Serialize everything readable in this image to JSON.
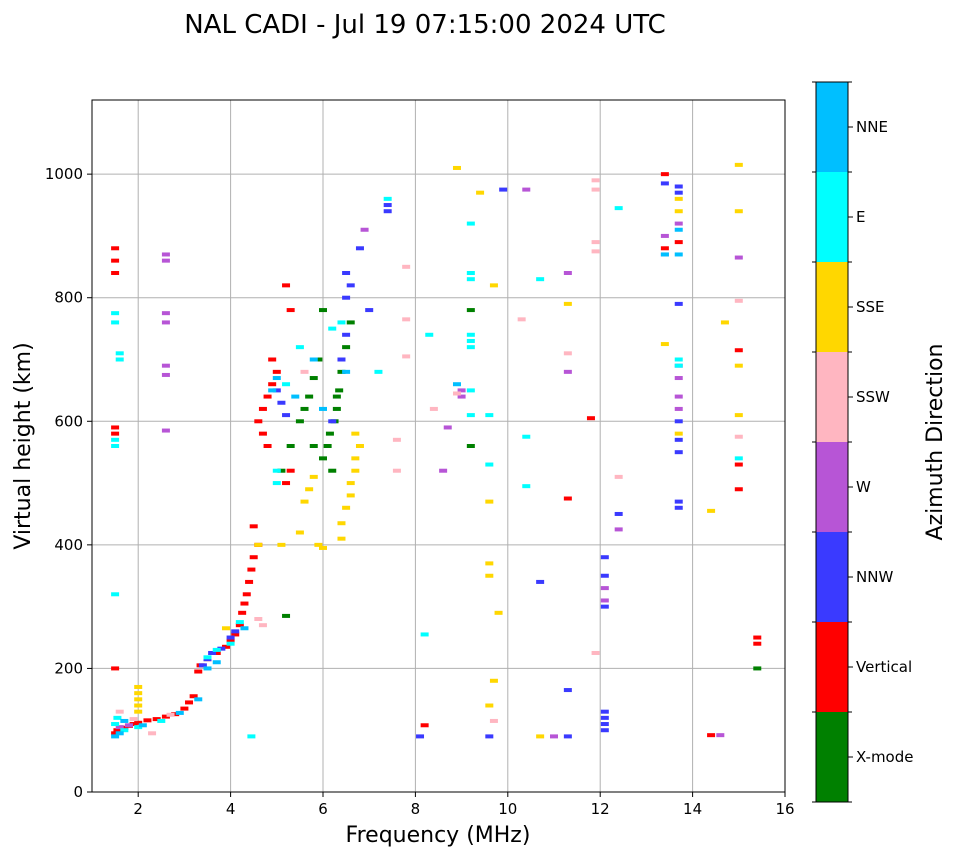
{
  "chart_data": {
    "type": "scatter",
    "title": "NAL CADI - Jul 19 07:15:00 2024 UTC",
    "xlabel": "Frequency (MHz)",
    "ylabel": "Virtual height (km)",
    "xlim": [
      1,
      16
    ],
    "ylim": [
      0,
      1120
    ],
    "xticks": [
      2,
      4,
      6,
      8,
      10,
      12,
      14,
      16
    ],
    "yticks": [
      0,
      200,
      400,
      600,
      800,
      1000
    ],
    "grid": true,
    "colorbar": {
      "label": "Azimuth Direction",
      "categories": [
        {
          "name": "X-mode",
          "color": "#008000"
        },
        {
          "name": "Vertical",
          "color": "#ff0000"
        },
        {
          "name": "NNW",
          "color": "#3a3aff"
        },
        {
          "name": "W",
          "color": "#b755d6"
        },
        {
          "name": "SSW",
          "color": "#ffb6c1"
        },
        {
          "name": "SSE",
          "color": "#ffd700"
        },
        {
          "name": "E",
          "color": "#00ffff"
        },
        {
          "name": "NNE",
          "color": "#00bfff"
        }
      ]
    },
    "series": [
      {
        "name": "Vertical",
        "points": [
          [
            1.5,
            95
          ],
          [
            1.55,
            100
          ],
          [
            1.7,
            104
          ],
          [
            1.8,
            107
          ],
          [
            1.9,
            110
          ],
          [
            2.0,
            112
          ],
          [
            2.2,
            116
          ],
          [
            2.4,
            118
          ],
          [
            2.6,
            122
          ],
          [
            2.8,
            126
          ],
          [
            3.0,
            135
          ],
          [
            3.1,
            145
          ],
          [
            3.2,
            155
          ],
          [
            3.3,
            195
          ],
          [
            3.35,
            205
          ],
          [
            3.5,
            215
          ],
          [
            3.7,
            225
          ],
          [
            3.9,
            235
          ],
          [
            4.0,
            245
          ],
          [
            4.1,
            255
          ],
          [
            4.2,
            270
          ],
          [
            4.25,
            290
          ],
          [
            4.3,
            305
          ],
          [
            4.35,
            320
          ],
          [
            4.4,
            340
          ],
          [
            4.45,
            360
          ],
          [
            4.5,
            380
          ],
          [
            4.6,
            400
          ],
          [
            4.5,
            430
          ],
          [
            4.6,
            600
          ],
          [
            4.7,
            620
          ],
          [
            4.8,
            640
          ],
          [
            4.9,
            660
          ],
          [
            5.0,
            680
          ],
          [
            4.7,
            580
          ],
          [
            4.8,
            560
          ],
          [
            4.9,
            700
          ],
          [
            5.2,
            820
          ],
          [
            5.3,
            780
          ],
          [
            5.2,
            500
          ],
          [
            5.3,
            520
          ],
          [
            1.5,
            200
          ],
          [
            1.5,
            590
          ],
          [
            1.5,
            580
          ],
          [
            1.5,
            840
          ],
          [
            1.5,
            860
          ],
          [
            1.5,
            880
          ],
          [
            8.2,
            108
          ],
          [
            11.3,
            475
          ],
          [
            11.8,
            605
          ],
          [
            13.4,
            1000
          ],
          [
            13.4,
            880
          ],
          [
            13.7,
            890
          ],
          [
            14.4,
            92
          ],
          [
            15.0,
            715
          ],
          [
            15.0,
            530
          ],
          [
            15.0,
            490
          ],
          [
            15.4,
            240
          ],
          [
            15.4,
            250
          ]
        ]
      },
      {
        "name": "X-mode",
        "points": [
          [
            5.2,
            285
          ],
          [
            5.1,
            520
          ],
          [
            5.3,
            560
          ],
          [
            5.5,
            600
          ],
          [
            5.6,
            620
          ],
          [
            5.7,
            640
          ],
          [
            5.8,
            670
          ],
          [
            5.9,
            700
          ],
          [
            6.0,
            540
          ],
          [
            6.1,
            560
          ],
          [
            6.15,
            580
          ],
          [
            6.2,
            520
          ],
          [
            6.25,
            600
          ],
          [
            6.3,
            620
          ],
          [
            6.35,
            650
          ],
          [
            6.4,
            680
          ],
          [
            6.5,
            720
          ],
          [
            6.6,
            760
          ],
          [
            6.0,
            780
          ],
          [
            6.3,
            640
          ],
          [
            5.8,
            560
          ],
          [
            9.2,
            780
          ],
          [
            9.2,
            560
          ],
          [
            15.4,
            200
          ]
        ]
      },
      {
        "name": "NNW",
        "points": [
          [
            3.4,
            205
          ],
          [
            3.5,
            215
          ],
          [
            3.6,
            225
          ],
          [
            3.8,
            232
          ],
          [
            4.0,
            250
          ],
          [
            4.1,
            260
          ],
          [
            5.0,
            650
          ],
          [
            5.1,
            630
          ],
          [
            5.2,
            610
          ],
          [
            6.2,
            600
          ],
          [
            6.4,
            700
          ],
          [
            6.5,
            740
          ],
          [
            6.5,
            800
          ],
          [
            6.6,
            820
          ],
          [
            6.5,
            840
          ],
          [
            6.8,
            880
          ],
          [
            7.0,
            780
          ],
          [
            7.4,
            950
          ],
          [
            7.4,
            940
          ],
          [
            9.9,
            975
          ],
          [
            10.7,
            340
          ],
          [
            11.3,
            165
          ],
          [
            12.1,
            100
          ],
          [
            12.1,
            110
          ],
          [
            12.1,
            120
          ],
          [
            12.1,
            130
          ],
          [
            12.1,
            380
          ],
          [
            12.1,
            350
          ],
          [
            12.1,
            300
          ],
          [
            12.4,
            450
          ],
          [
            13.7,
            980
          ],
          [
            13.7,
            970
          ],
          [
            13.4,
            985
          ],
          [
            13.7,
            790
          ],
          [
            13.7,
            600
          ],
          [
            13.7,
            570
          ],
          [
            13.7,
            550
          ],
          [
            13.7,
            470
          ],
          [
            13.7,
            460
          ],
          [
            8.1,
            90
          ],
          [
            9.6,
            90
          ],
          [
            11.3,
            90
          ]
        ]
      },
      {
        "name": "W",
        "points": [
          [
            1.6,
            105
          ],
          [
            1.8,
            108
          ],
          [
            2.6,
            860
          ],
          [
            2.6,
            870
          ],
          [
            2.6,
            775
          ],
          [
            2.6,
            760
          ],
          [
            2.6,
            690
          ],
          [
            2.6,
            675
          ],
          [
            2.6,
            585
          ],
          [
            6.9,
            910
          ],
          [
            8.7,
            590
          ],
          [
            8.6,
            520
          ],
          [
            9.0,
            640
          ],
          [
            9.0,
            650
          ],
          [
            10.4,
            975
          ],
          [
            11.3,
            840
          ],
          [
            11.3,
            680
          ],
          [
            12.4,
            425
          ],
          [
            12.1,
            330
          ],
          [
            12.1,
            310
          ],
          [
            13.4,
            870
          ],
          [
            13.4,
            900
          ],
          [
            13.7,
            920
          ],
          [
            13.7,
            690
          ],
          [
            13.7,
            670
          ],
          [
            13.7,
            640
          ],
          [
            13.7,
            620
          ],
          [
            14.6,
            92
          ],
          [
            15.0,
            865
          ],
          [
            11.0,
            90
          ]
        ]
      },
      {
        "name": "SSW",
        "points": [
          [
            1.6,
            130
          ],
          [
            1.9,
            118
          ],
          [
            2.3,
            95
          ],
          [
            2.7,
            125
          ],
          [
            4.6,
            280
          ],
          [
            4.7,
            270
          ],
          [
            5.6,
            680
          ],
          [
            7.6,
            570
          ],
          [
            7.6,
            520
          ],
          [
            7.8,
            765
          ],
          [
            7.8,
            705
          ],
          [
            7.8,
            850
          ],
          [
            8.4,
            620
          ],
          [
            8.9,
            645
          ],
          [
            10.3,
            765
          ],
          [
            11.3,
            710
          ],
          [
            11.9,
            990
          ],
          [
            11.9,
            975
          ],
          [
            11.9,
            890
          ],
          [
            11.9,
            875
          ],
          [
            11.9,
            225
          ],
          [
            12.4,
            510
          ],
          [
            15.0,
            575
          ],
          [
            15.0,
            795
          ],
          [
            9.7,
            115
          ]
        ]
      },
      {
        "name": "SSE",
        "points": [
          [
            2.0,
            170
          ],
          [
            2.0,
            160
          ],
          [
            2.0,
            150
          ],
          [
            2.0,
            140
          ],
          [
            2.0,
            130
          ],
          [
            3.9,
            265
          ],
          [
            4.6,
            400
          ],
          [
            5.1,
            400
          ],
          [
            5.5,
            420
          ],
          [
            5.6,
            470
          ],
          [
            5.7,
            490
          ],
          [
            5.8,
            510
          ],
          [
            5.9,
            400
          ],
          [
            6.0,
            395
          ],
          [
            6.4,
            410
          ],
          [
            6.4,
            435
          ],
          [
            6.5,
            460
          ],
          [
            6.6,
            480
          ],
          [
            6.6,
            500
          ],
          [
            6.7,
            520
          ],
          [
            6.7,
            540
          ],
          [
            6.8,
            560
          ],
          [
            6.7,
            580
          ],
          [
            8.9,
            1010
          ],
          [
            9.4,
            970
          ],
          [
            9.7,
            820
          ],
          [
            9.8,
            290
          ],
          [
            9.6,
            470
          ],
          [
            9.6,
            370
          ],
          [
            9.6,
            350
          ],
          [
            9.7,
            180
          ],
          [
            9.6,
            140
          ],
          [
            10.7,
            90
          ],
          [
            11.3,
            790
          ],
          [
            13.4,
            725
          ],
          [
            13.7,
            940
          ],
          [
            13.7,
            960
          ],
          [
            14.4,
            455
          ],
          [
            14.7,
            760
          ],
          [
            15.0,
            1015
          ],
          [
            15.0,
            940
          ],
          [
            15.0,
            690
          ],
          [
            15.0,
            610
          ],
          [
            13.7,
            580
          ]
        ]
      },
      {
        "name": "E",
        "points": [
          [
            1.5,
            110
          ],
          [
            1.55,
            120
          ],
          [
            1.7,
            100
          ],
          [
            2.0,
            105
          ],
          [
            2.5,
            115
          ],
          [
            3.5,
            218
          ],
          [
            3.7,
            230
          ],
          [
            4.0,
            240
          ],
          [
            4.2,
            275
          ],
          [
            4.45,
            90
          ],
          [
            5.0,
            500
          ],
          [
            5.0,
            520
          ],
          [
            5.2,
            660
          ],
          [
            5.5,
            720
          ],
          [
            6.2,
            750
          ],
          [
            6.4,
            760
          ],
          [
            7.2,
            680
          ],
          [
            7.4,
            960
          ],
          [
            8.2,
            255
          ],
          [
            8.3,
            740
          ],
          [
            9.2,
            840
          ],
          [
            9.2,
            830
          ],
          [
            9.2,
            920
          ],
          [
            9.2,
            740
          ],
          [
            9.2,
            730
          ],
          [
            9.2,
            720
          ],
          [
            9.2,
            650
          ],
          [
            9.2,
            610
          ],
          [
            9.6,
            610
          ],
          [
            9.6,
            530
          ],
          [
            10.4,
            575
          ],
          [
            10.4,
            495
          ],
          [
            10.7,
            830
          ],
          [
            12.4,
            945
          ],
          [
            13.7,
            700
          ],
          [
            13.7,
            690
          ],
          [
            15.0,
            540
          ],
          [
            1.5,
            320
          ],
          [
            1.5,
            775
          ],
          [
            1.5,
            760
          ],
          [
            1.5,
            570
          ],
          [
            1.5,
            560
          ],
          [
            1.6,
            710
          ],
          [
            1.6,
            700
          ]
        ]
      },
      {
        "name": "NNE",
        "points": [
          [
            1.5,
            90
          ],
          [
            1.6,
            95
          ],
          [
            1.7,
            115
          ],
          [
            2.1,
            108
          ],
          [
            2.9,
            128
          ],
          [
            3.3,
            150
          ],
          [
            3.5,
            200
          ],
          [
            3.7,
            210
          ],
          [
            4.3,
            265
          ],
          [
            4.9,
            650
          ],
          [
            5.0,
            670
          ],
          [
            5.4,
            640
          ],
          [
            5.8,
            700
          ],
          [
            6.0,
            620
          ],
          [
            6.5,
            680
          ],
          [
            13.4,
            870
          ],
          [
            13.7,
            870
          ],
          [
            13.7,
            910
          ],
          [
            8.9,
            660
          ]
        ]
      }
    ]
  }
}
